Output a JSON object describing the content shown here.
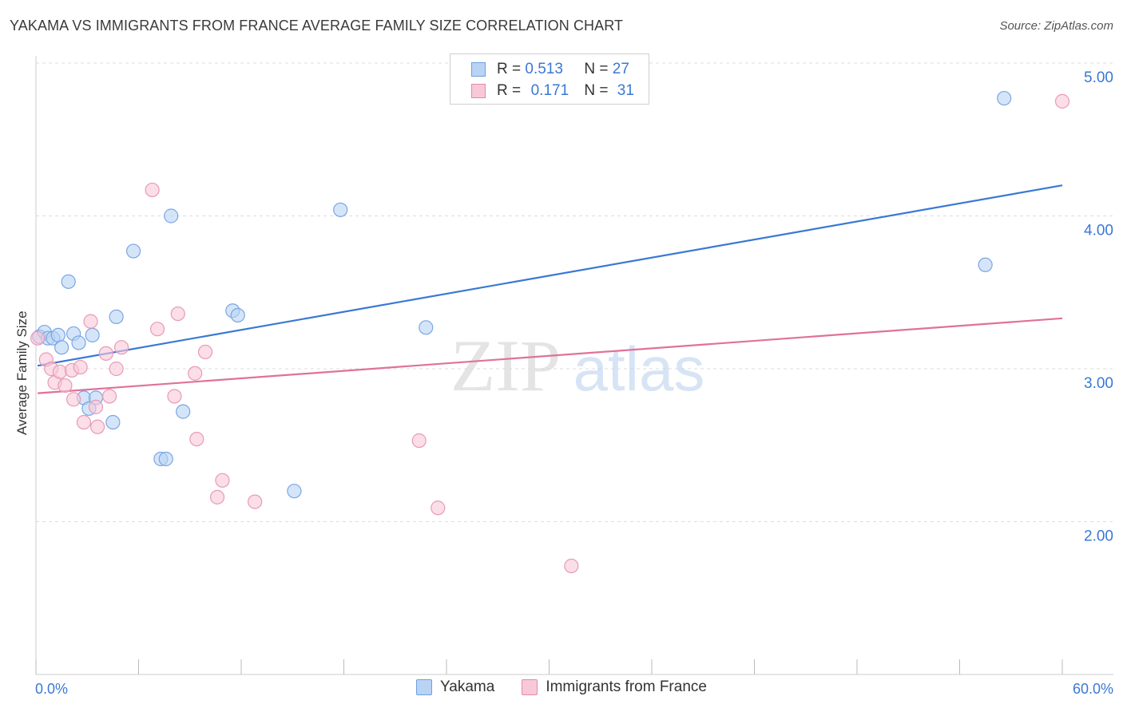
{
  "title": "YAKAMA VS IMMIGRANTS FROM FRANCE AVERAGE FAMILY SIZE CORRELATION CHART",
  "source": "Source: ZipAtlas.com",
  "watermark": {
    "zip": "ZIP",
    "atlas": "atlas"
  },
  "legend": {
    "r_label": "R =",
    "n_label": "N =",
    "rows": [
      {
        "r": "0.513",
        "n": "27",
        "fill": "#b9d3f5",
        "stroke": "#6f9fe0"
      },
      {
        "r": "0.171",
        "n": "31",
        "fill": "#f8c8d8",
        "stroke": "#e38aa8"
      }
    ]
  },
  "bottom_legend": [
    "Yakama",
    "Immigrants from France"
  ],
  "chart_data": {
    "type": "scatter",
    "title": "YAKAMA VS IMMIGRANTS FROM FRANCE AVERAGE FAMILY SIZE CORRELATION CHART",
    "xlabel": "",
    "ylabel": "Average Family Size",
    "xlim": [
      0,
      60
    ],
    "ylim": [
      1.0,
      5.1
    ],
    "x_tick_labels": [
      "0.0%",
      "60.0%"
    ],
    "y_ticks": [
      2.0,
      3.0,
      4.0,
      5.0
    ],
    "y_tick_labels": [
      "2.00",
      "3.00",
      "4.00",
      "5.00"
    ],
    "grid": true,
    "series": [
      {
        "name": "Yakama",
        "color": "#3a78d4",
        "fill": "#b9d3f5",
        "stroke": "#7aa6e2",
        "trend": {
          "x": [
            0.1,
            60.0
          ],
          "y": [
            3.02,
            4.2
          ]
        },
        "points": [
          {
            "x": 0.2,
            "y": 3.21
          },
          {
            "x": 0.5,
            "y": 3.24
          },
          {
            "x": 0.7,
            "y": 3.2
          },
          {
            "x": 1.0,
            "y": 3.2
          },
          {
            "x": 1.3,
            "y": 3.22
          },
          {
            "x": 1.5,
            "y": 3.14
          },
          {
            "x": 1.9,
            "y": 3.57
          },
          {
            "x": 2.2,
            "y": 3.23
          },
          {
            "x": 2.5,
            "y": 3.17
          },
          {
            "x": 2.8,
            "y": 2.81
          },
          {
            "x": 3.1,
            "y": 2.74
          },
          {
            "x": 3.3,
            "y": 3.22
          },
          {
            "x": 3.5,
            "y": 2.81
          },
          {
            "x": 4.5,
            "y": 2.65
          },
          {
            "x": 4.7,
            "y": 3.34
          },
          {
            "x": 5.7,
            "y": 3.77
          },
          {
            "x": 7.3,
            "y": 2.41
          },
          {
            "x": 7.6,
            "y": 2.41
          },
          {
            "x": 7.9,
            "y": 4.0
          },
          {
            "x": 8.6,
            "y": 2.72
          },
          {
            "x": 11.5,
            "y": 3.38
          },
          {
            "x": 11.8,
            "y": 3.35
          },
          {
            "x": 15.1,
            "y": 2.2
          },
          {
            "x": 17.8,
            "y": 4.04
          },
          {
            "x": 22.8,
            "y": 3.27
          },
          {
            "x": 55.5,
            "y": 3.68
          },
          {
            "x": 56.6,
            "y": 4.77
          }
        ]
      },
      {
        "name": "Immigrants from France",
        "color": "#e0719a",
        "fill": "#f8c8d8",
        "stroke": "#e89ab5",
        "trend": {
          "x": [
            0.1,
            60.0
          ],
          "y": [
            2.84,
            3.33
          ]
        },
        "points": [
          {
            "x": 0.1,
            "y": 3.2
          },
          {
            "x": 0.6,
            "y": 3.06
          },
          {
            "x": 0.9,
            "y": 3.0
          },
          {
            "x": 1.1,
            "y": 2.91
          },
          {
            "x": 1.4,
            "y": 2.98
          },
          {
            "x": 1.7,
            "y": 2.89
          },
          {
            "x": 2.1,
            "y": 2.99
          },
          {
            "x": 2.2,
            "y": 2.8
          },
          {
            "x": 2.6,
            "y": 3.01
          },
          {
            "x": 2.8,
            "y": 2.65
          },
          {
            "x": 3.2,
            "y": 3.31
          },
          {
            "x": 3.5,
            "y": 2.75
          },
          {
            "x": 3.6,
            "y": 2.62
          },
          {
            "x": 4.1,
            "y": 3.1
          },
          {
            "x": 4.3,
            "y": 2.82
          },
          {
            "x": 4.7,
            "y": 3.0
          },
          {
            "x": 5.0,
            "y": 3.14
          },
          {
            "x": 6.8,
            "y": 4.17
          },
          {
            "x": 7.1,
            "y": 3.26
          },
          {
            "x": 8.1,
            "y": 2.82
          },
          {
            "x": 8.3,
            "y": 3.36
          },
          {
            "x": 9.3,
            "y": 2.97
          },
          {
            "x": 9.4,
            "y": 2.54
          },
          {
            "x": 9.9,
            "y": 3.11
          },
          {
            "x": 10.6,
            "y": 2.16
          },
          {
            "x": 10.9,
            "y": 2.27
          },
          {
            "x": 12.8,
            "y": 2.13
          },
          {
            "x": 22.4,
            "y": 2.53
          },
          {
            "x": 23.5,
            "y": 2.09
          },
          {
            "x": 31.3,
            "y": 1.71
          },
          {
            "x": 60.0,
            "y": 4.75
          }
        ]
      }
    ]
  }
}
